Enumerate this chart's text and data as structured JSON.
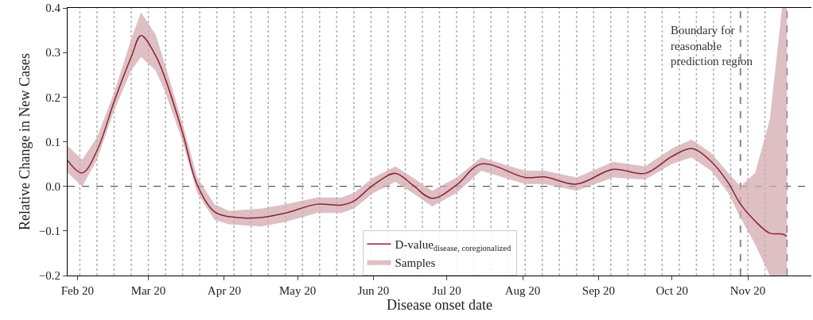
{
  "chart_data": {
    "type": "line",
    "xlabel": "Disease onset date",
    "ylabel": "Relative Change in New Cases",
    "x": [
      "2020-01-28",
      "2020-02-03",
      "2020-02-09",
      "2020-02-16",
      "2020-02-23",
      "2020-02-27",
      "2020-03-04",
      "2020-03-08",
      "2020-03-15",
      "2020-03-21",
      "2020-03-28",
      "2020-04-03",
      "2020-04-16",
      "2020-04-26",
      "2020-05-09",
      "2020-05-19",
      "2020-05-24",
      "2020-06-01",
      "2020-06-10",
      "2020-06-17",
      "2020-06-25",
      "2020-07-05",
      "2020-07-15",
      "2020-08-02",
      "2020-08-10",
      "2020-08-23",
      "2020-09-07",
      "2020-09-20",
      "2020-10-01",
      "2020-10-09",
      "2020-10-17",
      "2020-10-24",
      "2020-10-29",
      "2020-11-04",
      "2020-11-10",
      "2020-11-15",
      "2020-11-17"
    ],
    "series": [
      {
        "name": "Samples",
        "color": "#d3a9b0",
        "values": [
          null,
          null,
          null,
          null,
          null,
          null,
          null,
          null,
          null,
          null,
          null,
          null,
          null,
          null,
          null,
          null,
          null,
          null,
          null,
          null,
          null,
          null,
          null,
          null,
          null,
          null,
          null,
          null,
          null,
          null,
          null,
          null,
          null,
          null,
          null,
          null,
          null
        ],
        "lower": [
          0.03,
          0.0,
          0.06,
          0.17,
          0.26,
          0.29,
          0.26,
          0.21,
          0.1,
          -0.015,
          -0.075,
          -0.085,
          -0.09,
          -0.08,
          -0.06,
          -0.06,
          -0.05,
          -0.015,
          0.01,
          -0.015,
          -0.045,
          -0.015,
          0.035,
          0.005,
          0.005,
          -0.01,
          0.02,
          0.015,
          0.05,
          0.065,
          0.035,
          -0.015,
          -0.07,
          -0.13,
          -0.2,
          -0.2,
          -0.2
        ],
        "upper": [
          0.09,
          0.06,
          0.11,
          0.21,
          0.33,
          0.39,
          0.34,
          0.27,
          0.14,
          0.02,
          -0.04,
          -0.055,
          -0.05,
          -0.04,
          -0.025,
          -0.025,
          -0.015,
          0.02,
          0.045,
          0.02,
          -0.01,
          0.02,
          0.065,
          0.035,
          0.035,
          0.02,
          0.055,
          0.045,
          0.085,
          0.105,
          0.075,
          0.03,
          0.0,
          0.03,
          0.15,
          0.4,
          0.4
        ]
      },
      {
        "name": "D-value$_{disease, coregionalized}$",
        "color": "#8b2232",
        "values": [
          0.058,
          0.03,
          0.08,
          0.19,
          0.29,
          0.338,
          0.293,
          0.24,
          0.12,
          0.003,
          -0.057,
          -0.068,
          -0.07,
          -0.06,
          -0.04,
          -0.042,
          -0.033,
          0.003,
          0.029,
          0.003,
          -0.027,
          0.003,
          0.05,
          0.02,
          0.021,
          0.005,
          0.038,
          0.029,
          0.067,
          0.085,
          0.056,
          0.008,
          -0.04,
          -0.078,
          -0.105,
          -0.107,
          -0.112
        ]
      }
    ],
    "xlim": [
      "2020-01-28",
      "2020-11-27"
    ],
    "xticks": [
      {
        "value": "2020-02-01",
        "label": "Feb 20"
      },
      {
        "value": "2020-03-01",
        "label": "Mar 20"
      },
      {
        "value": "2020-04-01",
        "label": "Apr 20"
      },
      {
        "value": "2020-05-01",
        "label": "May 20"
      },
      {
        "value": "2020-06-01",
        "label": "Jun 20"
      },
      {
        "value": "2020-07-01",
        "label": "Jul 20"
      },
      {
        "value": "2020-08-01",
        "label": "Aug 20"
      },
      {
        "value": "2020-09-01",
        "label": "Sep 20"
      },
      {
        "value": "2020-10-01",
        "label": "Oct 20"
      },
      {
        "value": "2020-11-01",
        "label": "Nov 20"
      }
    ],
    "ylim": [
      -0.2,
      0.4
    ],
    "yticks": [
      {
        "value": -0.2,
        "label": "−0.2"
      },
      {
        "value": -0.1,
        "label": "−0.1"
      },
      {
        "value": 0,
        "label": "0.0"
      },
      0.1,
      0.2,
      0.3,
      0.4
    ],
    "ref_lines": [
      {
        "axis": "x",
        "value": "2020-02-02",
        "color": "#b0b0b0",
        "line_style": "dotted"
      },
      {
        "axis": "x",
        "value": "2020-02-09",
        "color": "#b0b0b0",
        "line_style": "dotted"
      },
      {
        "axis": "x",
        "value": "2020-02-16",
        "color": "#b0b0b0",
        "line_style": "dotted"
      },
      {
        "axis": "x",
        "value": "2020-02-23",
        "color": "#b0b0b0",
        "line_style": "dotted"
      },
      {
        "axis": "x",
        "value": "2020-03-01",
        "color": "#b0b0b0",
        "line_style": "dotted"
      },
      {
        "axis": "x",
        "value": "2020-03-08",
        "color": "#b0b0b0",
        "line_style": "dotted"
      },
      {
        "axis": "x",
        "value": "2020-03-15",
        "color": "#b0b0b0",
        "line_style": "dotted"
      },
      {
        "axis": "x",
        "value": "2020-03-22",
        "color": "#b0b0b0",
        "line_style": "dotted"
      },
      {
        "axis": "x",
        "value": "2020-03-29",
        "color": "#b0b0b0",
        "line_style": "dotted"
      },
      {
        "axis": "x",
        "value": "2020-04-05",
        "color": "#b0b0b0",
        "line_style": "dotted"
      },
      {
        "axis": "x",
        "value": "2020-04-12",
        "color": "#b0b0b0",
        "line_style": "dotted"
      },
      {
        "axis": "x",
        "value": "2020-04-19",
        "color": "#b0b0b0",
        "line_style": "dotted"
      },
      {
        "axis": "x",
        "value": "2020-04-26",
        "color": "#b0b0b0",
        "line_style": "dotted"
      },
      {
        "axis": "x",
        "value": "2020-05-03",
        "color": "#b0b0b0",
        "line_style": "dotted"
      },
      {
        "axis": "x",
        "value": "2020-05-10",
        "color": "#b0b0b0",
        "line_style": "dotted"
      },
      {
        "axis": "x",
        "value": "2020-05-17",
        "color": "#b0b0b0",
        "line_style": "dotted"
      },
      {
        "axis": "x",
        "value": "2020-05-24",
        "color": "#b0b0b0",
        "line_style": "dotted"
      },
      {
        "axis": "x",
        "value": "2020-05-31",
        "color": "#b0b0b0",
        "line_style": "dotted"
      },
      {
        "axis": "x",
        "value": "2020-06-07",
        "color": "#b0b0b0",
        "line_style": "dotted"
      },
      {
        "axis": "x",
        "value": "2020-06-14",
        "color": "#b0b0b0",
        "line_style": "dotted"
      },
      {
        "axis": "x",
        "value": "2020-06-21",
        "color": "#b0b0b0",
        "line_style": "dotted"
      },
      {
        "axis": "x",
        "value": "2020-06-28",
        "color": "#b0b0b0",
        "line_style": "dotted"
      },
      {
        "axis": "x",
        "value": "2020-07-05",
        "color": "#b0b0b0",
        "line_style": "dotted"
      },
      {
        "axis": "x",
        "value": "2020-07-12",
        "color": "#b0b0b0",
        "line_style": "dotted"
      },
      {
        "axis": "x",
        "value": "2020-07-19",
        "color": "#b0b0b0",
        "line_style": "dotted"
      },
      {
        "axis": "x",
        "value": "2020-07-26",
        "color": "#b0b0b0",
        "line_style": "dotted"
      },
      {
        "axis": "x",
        "value": "2020-08-02",
        "color": "#b0b0b0",
        "line_style": "dotted"
      },
      {
        "axis": "x",
        "value": "2020-08-09",
        "color": "#b0b0b0",
        "line_style": "dotted"
      },
      {
        "axis": "x",
        "value": "2020-08-16",
        "color": "#b0b0b0",
        "line_style": "dotted"
      },
      {
        "axis": "x",
        "value": "2020-08-23",
        "color": "#b0b0b0",
        "line_style": "dotted"
      },
      {
        "axis": "x",
        "value": "2020-08-30",
        "color": "#b0b0b0",
        "line_style": "dotted"
      },
      {
        "axis": "x",
        "value": "2020-09-06",
        "color": "#b0b0b0",
        "line_style": "dotted"
      },
      {
        "axis": "x",
        "value": "2020-09-13",
        "color": "#b0b0b0",
        "line_style": "dotted"
      },
      {
        "axis": "x",
        "value": "2020-09-20",
        "color": "#b0b0b0",
        "line_style": "dotted"
      },
      {
        "axis": "x",
        "value": "2020-09-27",
        "color": "#b0b0b0",
        "line_style": "dotted"
      },
      {
        "axis": "x",
        "value": "2020-10-04",
        "color": "#b0b0b0",
        "line_style": "dotted"
      },
      {
        "axis": "x",
        "value": "2020-10-11",
        "color": "#b0b0b0",
        "line_style": "dotted"
      },
      {
        "axis": "x",
        "value": "2020-10-18",
        "color": "#b0b0b0",
        "line_style": "dotted"
      },
      {
        "axis": "x",
        "value": "2020-10-25",
        "color": "#b0b0b0",
        "line_style": "dotted"
      },
      {
        "axis": "x",
        "value": "2020-11-01",
        "color": "#b0b0b0",
        "line_style": "dotted"
      },
      {
        "axis": "x",
        "value": "2020-11-08",
        "color": "#b0b0b0",
        "line_style": "dotted"
      },
      {
        "axis": "y",
        "value": 0,
        "color": "#333333",
        "line_style": "dashed"
      },
      {
        "axis": "x",
        "value": "2020-10-29",
        "color": "#888888",
        "line_style": "dashed",
        "label": "Boundary for\nreasonable\nprediction region"
      },
      {
        "axis": "x",
        "value": "2020-11-17",
        "color": "#888888",
        "line_style": "dashed"
      }
    ],
    "legend": "bottom",
    "grid": false,
    "marker": "none"
  }
}
